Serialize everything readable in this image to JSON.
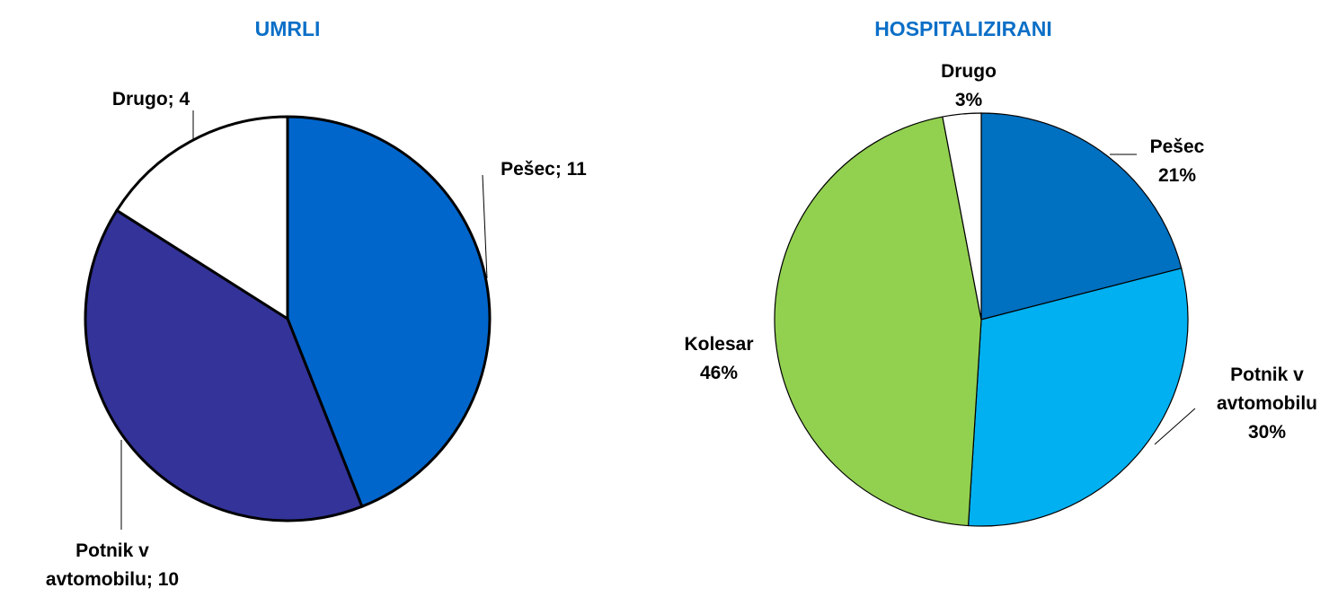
{
  "chart_data": [
    {
      "type": "pie",
      "title": "UMRLI",
      "categories": [
        "Pešec",
        "Potnik v avtomobilu",
        "Drugo"
      ],
      "values": [
        11,
        10,
        4
      ],
      "value_labels": [
        "Pešec; 11",
        "Potnik v\navtomobilu; 10",
        "Drugo; 4"
      ],
      "colors": [
        "#0066cc",
        "#333399",
        "#ffffff"
      ]
    },
    {
      "type": "pie",
      "title": "HOSPITALIZIRANI",
      "categories": [
        "Pešec",
        "Potnik v avtomobilu",
        "Kolesar",
        "Drugo"
      ],
      "values": [
        21,
        30,
        46,
        3
      ],
      "value_labels": [
        "Pešec\n21%",
        "Potnik v\navtomobilu\n30%",
        "Kolesar\n46%",
        "Drugo\n3%"
      ],
      "colors": [
        "#0070c0",
        "#00b0f0",
        "#92d050",
        "#ffffff"
      ]
    }
  ]
}
